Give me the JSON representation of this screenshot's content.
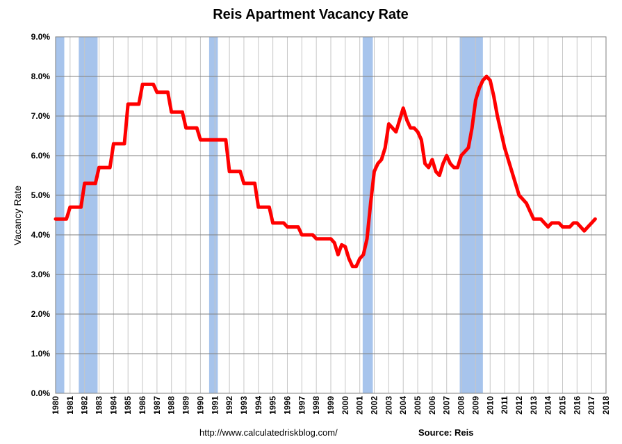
{
  "chart_data": {
    "type": "line",
    "title": "Reis Apartment Vacancy Rate",
    "ylabel": "Vacancy Rate",
    "xlabel": "",
    "ylim": [
      0,
      9
    ],
    "xlim": [
      1980,
      2018
    ],
    "y_ticks": [
      "0.0%",
      "1.0%",
      "2.0%",
      "3.0%",
      "4.0%",
      "5.0%",
      "6.0%",
      "7.0%",
      "8.0%",
      "9.0%"
    ],
    "x_ticks": [
      "1980",
      "1981",
      "1982",
      "1983",
      "1984",
      "1985",
      "1986",
      "1987",
      "1988",
      "1989",
      "1990",
      "1991",
      "1992",
      "1993",
      "1994",
      "1995",
      "1996",
      "1997",
      "1998",
      "1999",
      "2000",
      "2001",
      "2002",
      "2003",
      "2004",
      "2005",
      "2006",
      "2007",
      "2008",
      "2009",
      "2010",
      "2011",
      "2012",
      "2013",
      "2014",
      "2015",
      "2016",
      "2017",
      "2018"
    ],
    "grid": true,
    "series": [
      {
        "color": "#ff0000",
        "points": [
          [
            1980.0,
            4.4
          ],
          [
            1980.75,
            4.4
          ],
          [
            1981.0,
            4.7
          ],
          [
            1981.75,
            4.7
          ],
          [
            1982.0,
            5.3
          ],
          [
            1982.75,
            5.3
          ],
          [
            1983.0,
            5.7
          ],
          [
            1983.75,
            5.7
          ],
          [
            1984.0,
            6.3
          ],
          [
            1984.75,
            6.3
          ],
          [
            1985.0,
            7.3
          ],
          [
            1985.75,
            7.3
          ],
          [
            1986.0,
            7.8
          ],
          [
            1986.75,
            7.8
          ],
          [
            1987.0,
            7.6
          ],
          [
            1987.75,
            7.6
          ],
          [
            1988.0,
            7.1
          ],
          [
            1988.75,
            7.1
          ],
          [
            1989.0,
            6.7
          ],
          [
            1989.75,
            6.7
          ],
          [
            1990.0,
            6.4
          ],
          [
            1990.75,
            6.4
          ],
          [
            1991.0,
            6.4
          ],
          [
            1991.75,
            6.4
          ],
          [
            1992.0,
            5.6
          ],
          [
            1992.75,
            5.6
          ],
          [
            1993.0,
            5.3
          ],
          [
            1993.75,
            5.3
          ],
          [
            1994.0,
            4.7
          ],
          [
            1994.75,
            4.7
          ],
          [
            1995.0,
            4.3
          ],
          [
            1995.75,
            4.3
          ],
          [
            1996.0,
            4.2
          ],
          [
            1996.75,
            4.2
          ],
          [
            1997.0,
            4.0
          ],
          [
            1997.75,
            4.0
          ],
          [
            1998.0,
            3.9
          ],
          [
            1998.75,
            3.9
          ],
          [
            1999.0,
            3.9
          ],
          [
            1999.25,
            3.8
          ],
          [
            1999.5,
            3.5
          ],
          [
            1999.75,
            3.75
          ],
          [
            2000.0,
            3.7
          ],
          [
            2000.25,
            3.4
          ],
          [
            2000.5,
            3.2
          ],
          [
            2000.75,
            3.2
          ],
          [
            2001.0,
            3.4
          ],
          [
            2001.25,
            3.5
          ],
          [
            2001.5,
            3.9
          ],
          [
            2001.75,
            4.8
          ],
          [
            2002.0,
            5.6
          ],
          [
            2002.25,
            5.8
          ],
          [
            2002.5,
            5.9
          ],
          [
            2002.75,
            6.2
          ],
          [
            2003.0,
            6.8
          ],
          [
            2003.25,
            6.7
          ],
          [
            2003.5,
            6.6
          ],
          [
            2003.75,
            6.9
          ],
          [
            2004.0,
            7.2
          ],
          [
            2004.25,
            6.9
          ],
          [
            2004.5,
            6.7
          ],
          [
            2004.75,
            6.7
          ],
          [
            2005.0,
            6.6
          ],
          [
            2005.25,
            6.4
          ],
          [
            2005.5,
            5.8
          ],
          [
            2005.75,
            5.7
          ],
          [
            2006.0,
            5.9
          ],
          [
            2006.25,
            5.6
          ],
          [
            2006.5,
            5.5
          ],
          [
            2006.75,
            5.8
          ],
          [
            2007.0,
            6.0
          ],
          [
            2007.25,
            5.8
          ],
          [
            2007.5,
            5.7
          ],
          [
            2007.75,
            5.7
          ],
          [
            2008.0,
            6.0
          ],
          [
            2008.25,
            6.1
          ],
          [
            2008.5,
            6.2
          ],
          [
            2008.75,
            6.7
          ],
          [
            2009.0,
            7.4
          ],
          [
            2009.25,
            7.7
          ],
          [
            2009.5,
            7.9
          ],
          [
            2009.75,
            8.0
          ],
          [
            2010.0,
            7.9
          ],
          [
            2010.25,
            7.5
          ],
          [
            2010.5,
            7.0
          ],
          [
            2010.75,
            6.6
          ],
          [
            2011.0,
            6.2
          ],
          [
            2011.25,
            5.9
          ],
          [
            2011.5,
            5.6
          ],
          [
            2011.75,
            5.3
          ],
          [
            2012.0,
            5.0
          ],
          [
            2012.25,
            4.9
          ],
          [
            2012.5,
            4.8
          ],
          [
            2012.75,
            4.6
          ],
          [
            2013.0,
            4.4
          ],
          [
            2013.25,
            4.4
          ],
          [
            2013.5,
            4.4
          ],
          [
            2013.75,
            4.3
          ],
          [
            2014.0,
            4.2
          ],
          [
            2014.25,
            4.3
          ],
          [
            2014.5,
            4.3
          ],
          [
            2014.75,
            4.3
          ],
          [
            2015.0,
            4.2
          ],
          [
            2015.25,
            4.2
          ],
          [
            2015.5,
            4.2
          ],
          [
            2015.75,
            4.3
          ],
          [
            2016.0,
            4.3
          ],
          [
            2016.25,
            4.2
          ],
          [
            2016.5,
            4.1
          ],
          [
            2016.75,
            4.2
          ],
          [
            2017.0,
            4.3
          ],
          [
            2017.25,
            4.4
          ]
        ]
      }
    ],
    "recessions": [
      {
        "start": 1980.0,
        "end": 1980.6
      },
      {
        "start": 1981.6,
        "end": 1982.9
      },
      {
        "start": 1990.6,
        "end": 1991.2
      },
      {
        "start": 2001.2,
        "end": 2001.9
      },
      {
        "start": 2007.9,
        "end": 2009.5
      }
    ],
    "recession_color": "#a7c4ec",
    "grid_color": "#c6c6c6"
  },
  "footer": {
    "url": "http://www.calculatedriskblog.com/",
    "source": "Source: Reis"
  }
}
